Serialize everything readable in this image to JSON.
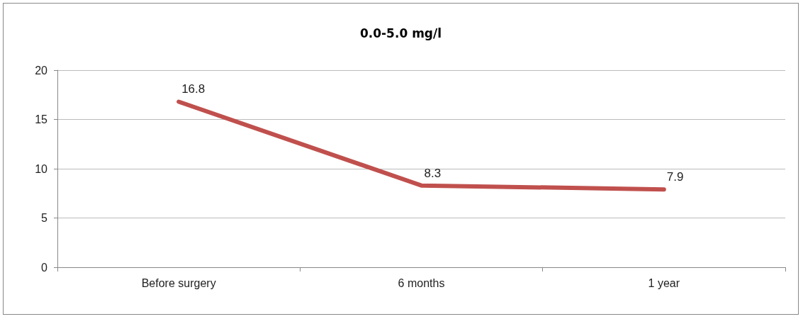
{
  "chart_data": {
    "type": "line",
    "title": "0.0-5.0 mg/l",
    "categories": [
      "Before surgery",
      "6 months",
      "1 year"
    ],
    "series": [
      {
        "color": "#c0504d",
        "values": [
          16.8,
          8.3,
          7.9
        ]
      }
    ],
    "ylim": [
      0,
      20
    ],
    "yticks": [
      0,
      5,
      10,
      15,
      20
    ],
    "grid": "y",
    "data_labels": true,
    "marker": "none"
  }
}
